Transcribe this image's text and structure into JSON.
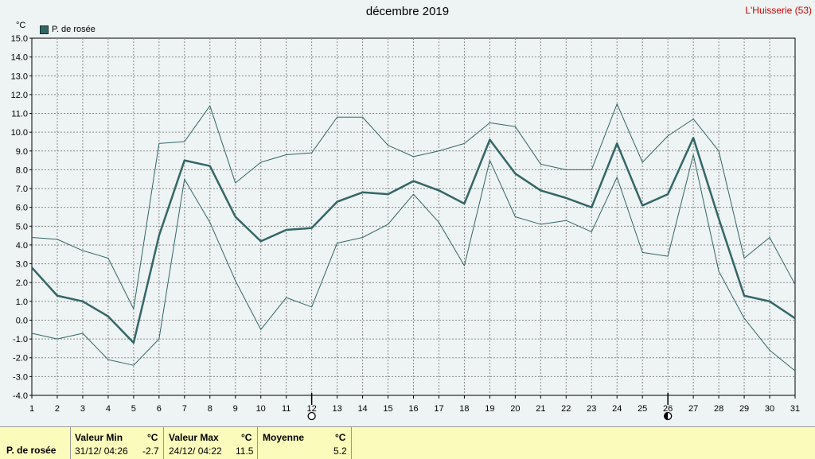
{
  "title": "décembre 2019",
  "station": "L'Huisserie (53)",
  "unit": "°C",
  "legend_label": "P. de rosée",
  "stats": {
    "series_label": "P. de rosée",
    "min_header": "Valeur Min",
    "min_unit": "°C",
    "min_date": "31/12/  04:26",
    "min_value": "-2.7",
    "max_header": "Valeur Max",
    "max_unit": "°C",
    "max_date": "24/12/  04:22",
    "max_value": "11.5",
    "mean_header": "Moyenne",
    "mean_unit": "°C",
    "mean_value": "5.2"
  },
  "chart_data": {
    "type": "line",
    "x": [
      1,
      2,
      3,
      4,
      5,
      6,
      7,
      8,
      9,
      10,
      11,
      12,
      13,
      14,
      15,
      16,
      17,
      18,
      19,
      20,
      21,
      22,
      23,
      24,
      25,
      26,
      27,
      28,
      29,
      30,
      31
    ],
    "series": [
      {
        "name": "P. de rosée",
        "values": [
          2.8,
          1.3,
          1.0,
          0.2,
          -1.2,
          4.5,
          8.5,
          8.2,
          5.5,
          4.2,
          4.8,
          4.9,
          6.3,
          6.8,
          6.7,
          7.4,
          6.9,
          6.2,
          9.6,
          7.8,
          6.9,
          6.5,
          6.0,
          9.4,
          6.1,
          6.7,
          9.7,
          5.4,
          1.3,
          1.0,
          0.1
        ],
        "color": "#336666",
        "style": "mean"
      },
      {
        "values": [
          4.4,
          4.3,
          3.7,
          3.3,
          0.6,
          9.4,
          9.5,
          11.4,
          7.3,
          8.4,
          8.8,
          8.9,
          10.8,
          10.8,
          9.3,
          8.7,
          9.0,
          9.4,
          10.5,
          10.3,
          8.3,
          8.0,
          8.0,
          11.5,
          8.4,
          9.8,
          10.7,
          9.0,
          3.3,
          4.4,
          1.9
        ],
        "color": "#336666",
        "style": "max"
      },
      {
        "values": [
          -0.7,
          -1.0,
          -0.7,
          -2.1,
          -2.4,
          -1.0,
          7.5,
          5.2,
          2.1,
          -0.5,
          1.2,
          0.7,
          4.1,
          4.4,
          5.1,
          6.7,
          5.2,
          2.9,
          8.5,
          5.5,
          5.1,
          5.3,
          4.7,
          7.6,
          3.6,
          3.4,
          8.8,
          2.6,
          0.1,
          -1.6,
          -2.7
        ],
        "color": "#336666",
        "style": "min"
      }
    ],
    "ylim": [
      -4,
      15
    ],
    "yticks": [
      "15.0",
      "14.0",
      "13.0",
      "12.0",
      "11.0",
      "10.0",
      "9.0",
      "8.0",
      "7.0",
      "6.0",
      "5.0",
      "4.0",
      "3.0",
      "2.0",
      "1.0",
      "0.0",
      "-1.0",
      "-2.0",
      "-3.0",
      "-4.0"
    ],
    "xticks": [
      "1",
      "2",
      "3",
      "4",
      "5",
      "6",
      "7",
      "8",
      "9",
      "10",
      "11",
      "12",
      "13",
      "14",
      "15",
      "16",
      "17",
      "18",
      "19",
      "20",
      "21",
      "22",
      "23",
      "24",
      "25",
      "26",
      "27",
      "28",
      "29",
      "30",
      "31"
    ],
    "grid": true,
    "moon_phases": [
      {
        "day": 12,
        "phase": "new"
      },
      {
        "day": 26,
        "phase": "first-quarter"
      }
    ]
  }
}
